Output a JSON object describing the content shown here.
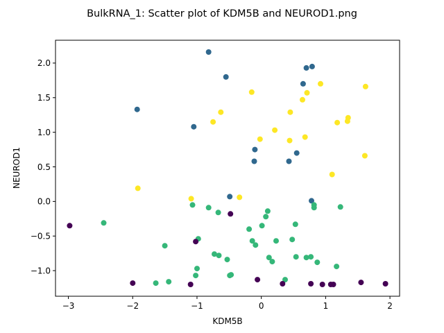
{
  "chart_data": {
    "type": "scatter",
    "title": "BulkRNA_1: Scatter plot of KDM5B and NEUROD1.png",
    "xlabel": "KDM5B",
    "ylabel": "NEUROD1",
    "xlim": [
      -3.2,
      2.15
    ],
    "ylim": [
      -1.37,
      2.33
    ],
    "xticks": [
      -3,
      -2,
      -1,
      0,
      1,
      2
    ],
    "yticks": [
      -1.0,
      -0.5,
      0.0,
      0.5,
      1.0,
      1.5,
      2.0
    ],
    "xtick_labels": [
      "−3",
      "−2",
      "−1",
      "0",
      "1",
      "2"
    ],
    "ytick_labels": [
      "−1.0",
      "−0.5",
      "0.0",
      "0.5",
      "1.0",
      "1.5",
      "2.0"
    ],
    "grid": false,
    "colors": {
      "purple": "#440154",
      "blue": "#30688e",
      "green": "#35b779",
      "yellow": "#fde725"
    },
    "series": [
      {
        "color": "#30688e",
        "points": [
          [
            -0.82,
            2.16
          ],
          [
            -0.55,
            1.8
          ],
          [
            -1.93,
            1.33
          ],
          [
            -1.05,
            1.08
          ],
          [
            0.7,
            1.93
          ],
          [
            0.79,
            1.95
          ],
          [
            0.65,
            1.7
          ],
          [
            -0.1,
            0.75
          ],
          [
            -0.11,
            0.58
          ],
          [
            0.55,
            0.7
          ],
          [
            0.43,
            0.58
          ],
          [
            -0.49,
            0.07
          ],
          [
            0.78,
            0.01
          ]
        ]
      },
      {
        "color": "#fde725",
        "points": [
          [
            -0.15,
            1.58
          ],
          [
            0.71,
            1.57
          ],
          [
            0.92,
            1.7
          ],
          [
            1.62,
            1.66
          ],
          [
            0.64,
            1.47
          ],
          [
            -0.63,
            1.29
          ],
          [
            0.45,
            1.29
          ],
          [
            -0.75,
            1.15
          ],
          [
            1.18,
            1.14
          ],
          [
            1.34,
            1.16
          ],
          [
            1.35,
            1.21
          ],
          [
            0.21,
            1.03
          ],
          [
            -0.02,
            0.9
          ],
          [
            0.68,
            0.93
          ],
          [
            0.44,
            0.88
          ],
          [
            1.61,
            0.66
          ],
          [
            1.1,
            0.39
          ],
          [
            -1.92,
            0.19
          ],
          [
            -1.09,
            0.04
          ],
          [
            -0.34,
            0.06
          ]
        ]
      },
      {
        "color": "#35b779",
        "points": [
          [
            -2.45,
            -0.31
          ],
          [
            -1.07,
            -0.05
          ],
          [
            -0.82,
            -0.09
          ],
          [
            -0.67,
            -0.16
          ],
          [
            0.1,
            -0.14
          ],
          [
            0.07,
            -0.22
          ],
          [
            0.82,
            -0.05
          ],
          [
            0.82,
            -0.09
          ],
          [
            1.23,
            -0.08
          ],
          [
            -0.19,
            -0.4
          ],
          [
            0.01,
            -0.35
          ],
          [
            0.53,
            -0.33
          ],
          [
            -0.98,
            -0.54
          ],
          [
            -0.14,
            -0.57
          ],
          [
            -0.09,
            -0.63
          ],
          [
            0.23,
            -0.57
          ],
          [
            0.48,
            -0.55
          ],
          [
            -1.5,
            -0.64
          ],
          [
            -0.73,
            -0.76
          ],
          [
            -0.66,
            -0.78
          ],
          [
            -0.53,
            -0.84
          ],
          [
            0.12,
            -0.81
          ],
          [
            0.17,
            -0.87
          ],
          [
            0.54,
            -0.8
          ],
          [
            0.7,
            -0.81
          ],
          [
            0.77,
            -0.8
          ],
          [
            0.87,
            -0.88
          ],
          [
            1.17,
            -0.94
          ],
          [
            -1.0,
            -0.97
          ],
          [
            -1.02,
            -1.07
          ],
          [
            -0.47,
            -1.06
          ],
          [
            -0.49,
            -1.07
          ],
          [
            0.37,
            -1.13
          ],
          [
            -1.44,
            -1.16
          ],
          [
            -1.64,
            -1.18
          ]
        ]
      },
      {
        "color": "#440154",
        "points": [
          [
            -2.98,
            -0.35
          ],
          [
            -1.02,
            -0.58
          ],
          [
            -0.48,
            -0.18
          ],
          [
            -2.0,
            -1.18
          ],
          [
            -1.1,
            -1.2
          ],
          [
            -0.06,
            -1.13
          ],
          [
            0.33,
            -1.19
          ],
          [
            0.77,
            -1.19
          ],
          [
            0.95,
            -1.2
          ],
          [
            1.08,
            -1.2
          ],
          [
            1.12,
            -1.2
          ],
          [
            1.55,
            -1.17
          ],
          [
            1.93,
            -1.19
          ]
        ]
      }
    ]
  }
}
